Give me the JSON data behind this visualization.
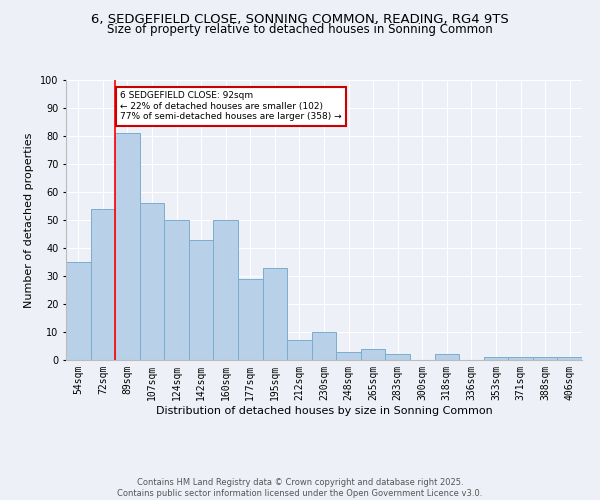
{
  "title1": "6, SEDGEFIELD CLOSE, SONNING COMMON, READING, RG4 9TS",
  "title2": "Size of property relative to detached houses in Sonning Common",
  "xlabel": "Distribution of detached houses by size in Sonning Common",
  "ylabel": "Number of detached properties",
  "categories": [
    "54sqm",
    "72sqm",
    "89sqm",
    "107sqm",
    "124sqm",
    "142sqm",
    "160sqm",
    "177sqm",
    "195sqm",
    "212sqm",
    "230sqm",
    "248sqm",
    "265sqm",
    "283sqm",
    "300sqm",
    "318sqm",
    "336sqm",
    "353sqm",
    "371sqm",
    "388sqm",
    "406sqm"
  ],
  "values": [
    35,
    54,
    81,
    56,
    50,
    43,
    50,
    29,
    33,
    7,
    10,
    3,
    4,
    2,
    0,
    2,
    0,
    1,
    1,
    1,
    1
  ],
  "bar_color": "#b8d0e8",
  "bar_edge_color": "#7aadd0",
  "red_line_x": 2,
  "annotation_text": "6 SEDGEFIELD CLOSE: 92sqm\n← 22% of detached houses are smaller (102)\n77% of semi-detached houses are larger (358) →",
  "annotation_box_color": "#ffffff",
  "annotation_box_edge": "#cc0000",
  "ylim": [
    0,
    100
  ],
  "yticks": [
    0,
    10,
    20,
    30,
    40,
    50,
    60,
    70,
    80,
    90,
    100
  ],
  "background_color": "#edf1f7",
  "footer": "Contains HM Land Registry data © Crown copyright and database right 2025.\nContains public sector information licensed under the Open Government Licence v3.0.",
  "title_fontsize": 9.5,
  "subtitle_fontsize": 8.5,
  "tick_fontsize": 7,
  "axis_label_fontsize": 8,
  "footer_fontsize": 6
}
